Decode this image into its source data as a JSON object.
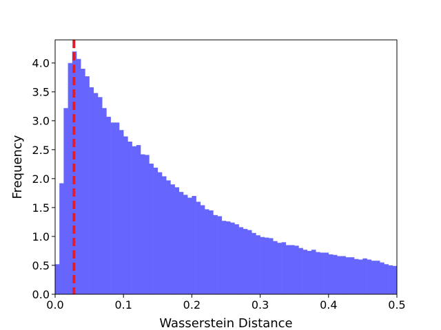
{
  "chart_data": {
    "type": "bar",
    "title": "",
    "xlabel": "Wasserstein Distance",
    "ylabel": "Frequency",
    "xlim": [
      0.0,
      0.5
    ],
    "ylim": [
      0.0,
      4.4
    ],
    "x_ticks": [
      "0.0",
      "0.1",
      "0.2",
      "0.3",
      "0.4",
      "0.5"
    ],
    "y_ticks": [
      "0.0",
      "0.5",
      "1.0",
      "1.5",
      "2.0",
      "2.5",
      "3.0",
      "3.5",
      "4.0"
    ],
    "bar_color": "#6666ff",
    "grid": false,
    "bin_width": 0.00625,
    "bin_start": 0.0,
    "values": [
      0.52,
      1.92,
      3.22,
      4.0,
      4.2,
      4.07,
      3.9,
      3.77,
      3.58,
      3.48,
      3.41,
      3.22,
      3.07,
      2.97,
      2.97,
      2.84,
      2.73,
      2.64,
      2.56,
      2.58,
      2.42,
      2.41,
      2.26,
      2.19,
      2.11,
      2.04,
      1.97,
      1.9,
      1.85,
      1.77,
      1.72,
      1.67,
      1.7,
      1.6,
      1.54,
      1.47,
      1.45,
      1.37,
      1.35,
      1.27,
      1.26,
      1.24,
      1.21,
      1.16,
      1.13,
      1.11,
      1.06,
      1.02,
      0.99,
      0.98,
      0.97,
      0.92,
      0.89,
      0.9,
      0.85,
      0.85,
      0.84,
      0.8,
      0.77,
      0.75,
      0.77,
      0.73,
      0.72,
      0.72,
      0.69,
      0.68,
      0.66,
      0.66,
      0.64,
      0.64,
      0.61,
      0.6,
      0.62,
      0.6,
      0.58,
      0.58,
      0.55,
      0.52,
      0.5,
      0.49
    ],
    "reference_line": {
      "x": 0.0275,
      "color": "#dc1e2e",
      "style": "dashed"
    }
  }
}
